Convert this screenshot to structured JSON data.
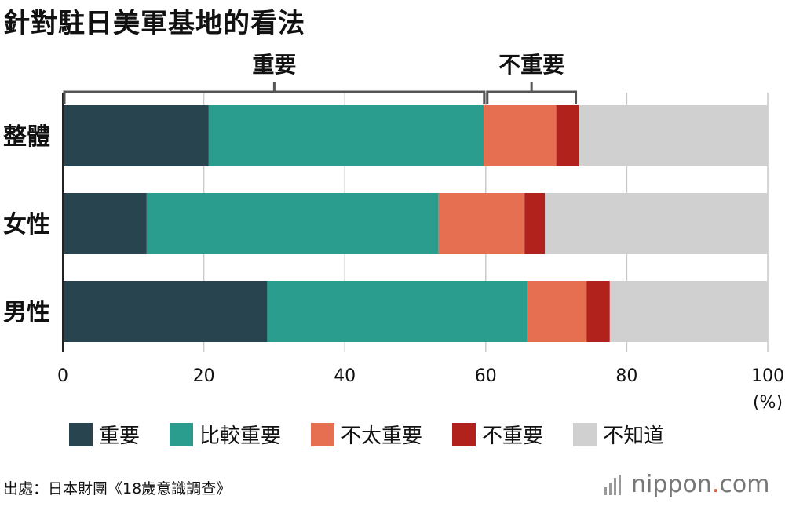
{
  "title": "針對駐日美軍基地的看法",
  "source": "出處：日本財團《18歲意識調查》",
  "logo": {
    "brand": "nippon",
    "dot": ".",
    "suffix": "com"
  },
  "brackets": [
    {
      "label": "重要",
      "from": 0,
      "to": 60
    },
    {
      "label": "不重要",
      "from": 60,
      "to": 73
    }
  ],
  "chart_data": {
    "type": "bar",
    "orientation": "horizontal",
    "stacked": true,
    "categories": [
      "整體",
      "女性",
      "男性"
    ],
    "series": [
      {
        "name": "重要",
        "color": "#27444f",
        "values": [
          20.7,
          11.9,
          29.0
        ]
      },
      {
        "name": "比較重要",
        "color": "#2a9d8f",
        "values": [
          39.0,
          41.4,
          36.9
        ]
      },
      {
        "name": "不太重要",
        "color": "#e76f51",
        "values": [
          10.3,
          12.2,
          8.4
        ]
      },
      {
        "name": "不重要",
        "color": "#b1221d",
        "values": [
          3.2,
          2.9,
          3.3
        ]
      },
      {
        "name": "不知道",
        "color": "#d0d0d0",
        "values": [
          26.8,
          31.6,
          22.4
        ]
      }
    ],
    "xlim": [
      0,
      100
    ],
    "xticks": [
      "0",
      "20",
      "40",
      "60",
      "80",
      "100"
    ],
    "xunit": "(%)",
    "grid": true,
    "legend": "bottom"
  }
}
